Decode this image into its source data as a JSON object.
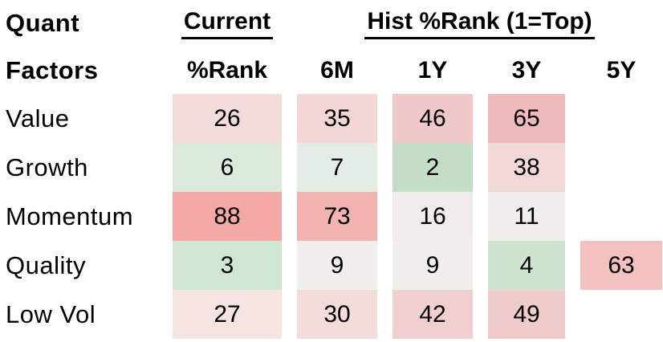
{
  "table": {
    "corner_title_line1": "Quant",
    "corner_title_line2": "Factors",
    "current_group_label": "Current",
    "hist_group_label": "Hist %Rank (1=Top)",
    "columns": [
      "%Rank",
      "6M",
      "1Y",
      "3Y",
      "5Y"
    ],
    "rows": [
      {
        "label": "Value",
        "cells": [
          {
            "value": "26",
            "bg": "#f4dcdc"
          },
          {
            "value": "35",
            "bg": "#f3d6d5"
          },
          {
            "value": "46",
            "bg": "#f1c8c9"
          },
          {
            "value": "65",
            "bg": "#f0babc"
          },
          {
            "value": "",
            "bg": ""
          }
        ]
      },
      {
        "label": "Growth",
        "cells": [
          {
            "value": "6",
            "bg": "#dceade"
          },
          {
            "value": "7",
            "bg": "#e4ede5"
          },
          {
            "value": "2",
            "bg": "#c4ddc5"
          },
          {
            "value": "38",
            "bg": "#f2d8d9"
          },
          {
            "value": "",
            "bg": ""
          }
        ]
      },
      {
        "label": "Momentum",
        "cells": [
          {
            "value": "88",
            "bg": "#f6a8a4"
          },
          {
            "value": "73",
            "bg": "#f3b4b1"
          },
          {
            "value": "16",
            "bg": "#f1eceb"
          },
          {
            "value": "11",
            "bg": "#efeeec"
          },
          {
            "value": "",
            "bg": ""
          }
        ]
      },
      {
        "label": "Quality",
        "cells": [
          {
            "value": "3",
            "bg": "#d0e5d3"
          },
          {
            "value": "9",
            "bg": "#f0efee"
          },
          {
            "value": "9",
            "bg": "#f0efee"
          },
          {
            "value": "4",
            "bg": "#cde3d0"
          },
          {
            "value": "63",
            "bg": "#f3c1bf"
          }
        ]
      },
      {
        "label": "Low Vol",
        "cells": [
          {
            "value": "27",
            "bg": "#f6e4e3"
          },
          {
            "value": "30",
            "bg": "#f4dcdb"
          },
          {
            "value": "42",
            "bg": "#f1cfd0"
          },
          {
            "value": "49",
            "bg": "#f0cbcb"
          },
          {
            "value": "",
            "bg": ""
          }
        ]
      }
    ]
  },
  "colors": {
    "low_rank_green": "#c4ddc5",
    "neutral_white": "#f0efee",
    "high_rank_red": "#f6a8a4",
    "text": "#000000"
  },
  "chart_data": {
    "type": "heatmap",
    "title": "Quant Factors — Hist %Rank (1=Top)",
    "row_labels": [
      "Value",
      "Growth",
      "Momentum",
      "Quality",
      "Low Vol"
    ],
    "col_labels": [
      "Current %Rank",
      "6M",
      "1Y",
      "3Y",
      "5Y"
    ],
    "values": [
      [
        26,
        35,
        46,
        65,
        null
      ],
      [
        6,
        7,
        2,
        38,
        null
      ],
      [
        88,
        73,
        16,
        11,
        null
      ],
      [
        3,
        9,
        9,
        4,
        63
      ],
      [
        27,
        30,
        42,
        49,
        null
      ]
    ],
    "scale_note": "1 = top percentile (green), higher values shade toward red",
    "legend_position": "none",
    "grid": false
  }
}
